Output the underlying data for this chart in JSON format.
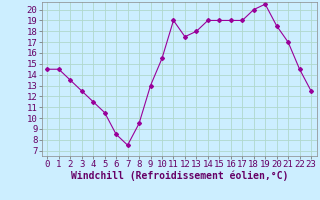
{
  "x": [
    0,
    1,
    2,
    3,
    4,
    5,
    6,
    7,
    8,
    9,
    10,
    11,
    12,
    13,
    14,
    15,
    16,
    17,
    18,
    19,
    20,
    21,
    22,
    23
  ],
  "y": [
    14.5,
    14.5,
    13.5,
    12.5,
    11.5,
    10.5,
    8.5,
    7.5,
    9.5,
    13.0,
    15.5,
    19.0,
    17.5,
    18.0,
    19.0,
    19.0,
    19.0,
    19.0,
    20.0,
    20.5,
    18.5,
    17.0,
    14.5,
    12.5
  ],
  "line_color": "#990099",
  "marker": "D",
  "marker_size": 2,
  "bg_color": "#cceeff",
  "grid_color": "#aaddcc",
  "xlabel": "Windchill (Refroidissement éolien,°C)",
  "xlabel_fontsize": 7,
  "tick_fontsize": 6.5,
  "xlim": [
    -0.5,
    23.5
  ],
  "ylim": [
    6.5,
    20.7
  ],
  "yticks": [
    7,
    8,
    9,
    10,
    11,
    12,
    13,
    14,
    15,
    16,
    17,
    18,
    19,
    20
  ],
  "xticks": [
    0,
    1,
    2,
    3,
    4,
    5,
    6,
    7,
    8,
    9,
    10,
    11,
    12,
    13,
    14,
    15,
    16,
    17,
    18,
    19,
    20,
    21,
    22,
    23
  ]
}
